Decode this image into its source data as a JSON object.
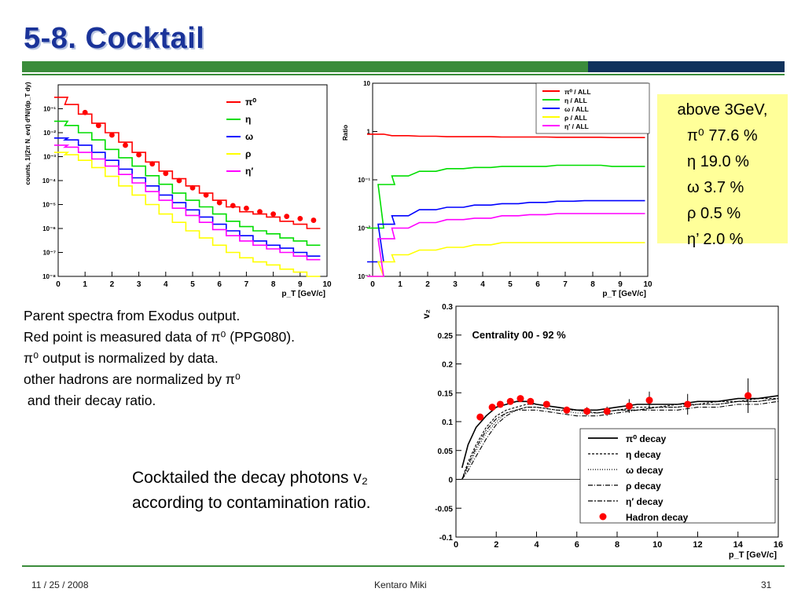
{
  "slide": {
    "title": "5-8. Cocktail",
    "footer_date": "11 / 25 / 2008",
    "footer_author": "Kentaro Miki",
    "page_number": "31"
  },
  "ratio_box": {
    "title": "above 3GeV,",
    "rows": [
      {
        "label": "π⁰",
        "value": "77.6 %"
      },
      {
        "label": "η",
        "value": "19.0 %"
      },
      {
        "label": "ω",
        "value": "3.7 %"
      },
      {
        "label": "ρ",
        "value": "0.5 %"
      },
      {
        "label": "η’",
        "value": "2.0 %"
      }
    ]
  },
  "notes": [
    "Parent spectra from Exodus output.",
    "Red point is measured data of π⁰ (PPG080).",
    "π⁰ output is normalized by data.",
    "other hadrons are normalized by π⁰",
    " and their decay ratio."
  ],
  "caption": [
    "Cocktailed the decay photons v₂",
    "according to contamination ratio."
  ],
  "colors": {
    "pi0": "#ff0000",
    "eta": "#00dd00",
    "omega": "#0000ff",
    "rho": "#ffff00",
    "etap": "#ff00ff",
    "data": "#ff0000",
    "title": "#1a3399"
  },
  "chart_data": [
    {
      "type": "line",
      "ylabel": "counts, 1/(2π N_evt) d²N/(dp_T dy)",
      "xlabel": "p_T [GeV/c]",
      "xlim": [
        0,
        10
      ],
      "ylim": [
        1e-08,
        1
      ],
      "log_y": true,
      "x_ticks": [
        "0",
        "1",
        "2",
        "3",
        "4",
        "5",
        "6",
        "7",
        "8",
        "9",
        "10"
      ],
      "y_ticks": [
        "10⁻⁸",
        "10⁻⁷",
        "10⁻⁶",
        "10⁻⁵",
        "10⁻⁴",
        "10⁻³",
        "10⁻²",
        "10⁻¹"
      ],
      "legend_position": "top-right",
      "series": [
        {
          "name": "π⁰",
          "key": "pi0",
          "x": [
            0.1,
            0.5,
            1,
            1.5,
            2,
            2.5,
            3,
            3.5,
            4,
            4.5,
            5,
            5.5,
            6,
            6.5,
            7,
            7.5,
            8,
            8.5,
            9,
            9.5
          ],
          "y": [
            0.3,
            0.15,
            0.06,
            0.025,
            0.01,
            0.004,
            0.0015,
            0.0006,
            0.00025,
            0.00012,
            6e-05,
            3e-05,
            1.5e-05,
            8e-06,
            5e-06,
            4e-06,
            3e-06,
            2e-06,
            1.5e-06,
            1e-06
          ]
        },
        {
          "name": "η",
          "key": "eta",
          "x": [
            0.1,
            0.5,
            1,
            1.5,
            2,
            2.5,
            3,
            3.5,
            4,
            4.5,
            5,
            5.5,
            6,
            6.5,
            7,
            7.5,
            8,
            8.5,
            9,
            9.5
          ],
          "y": [
            0.03,
            0.02,
            0.01,
            0.005,
            0.002,
            0.0009,
            0.0004,
            0.00016,
            7e-05,
            3e-05,
            1.5e-05,
            8e-06,
            4e-06,
            2e-06,
            1.2e-06,
            8e-07,
            6e-07,
            4e-07,
            3e-07,
            2e-07
          ]
        },
        {
          "name": "ω",
          "key": "omega",
          "x": [
            0.1,
            0.5,
            1,
            1.5,
            2,
            2.5,
            3,
            3.5,
            4,
            4.5,
            5,
            5.5,
            6,
            6.5,
            7,
            7.5,
            8,
            8.5,
            9,
            9.5
          ],
          "y": [
            0.006,
            0.005,
            0.003,
            0.0015,
            0.0007,
            0.0003,
            0.00013,
            6e-05,
            2.5e-05,
            1.2e-05,
            6e-06,
            3e-06,
            1.5e-06,
            8e-07,
            5e-07,
            3e-07,
            2e-07,
            1.5e-07,
            1e-07,
            7e-08
          ]
        },
        {
          "name": "ρ",
          "key": "rho",
          "x": [
            0.1,
            0.5,
            1,
            1.5,
            2,
            2.5,
            3,
            3.5,
            4,
            4.5,
            5,
            5.5,
            6,
            6.5,
            7,
            7.5,
            8,
            8.5,
            9,
            9.5
          ],
          "y": [
            0.0015,
            0.0012,
            0.0007,
            0.00035,
            0.00015,
            6e-05,
            2.5e-05,
            1e-05,
            4e-06,
            1.8e-06,
            8e-07,
            4e-07,
            2e-07,
            1e-07,
            6e-08,
            4e-08,
            3e-08,
            2e-08,
            1.5e-08,
            1e-08
          ]
        },
        {
          "name": "η′",
          "key": "etap",
          "x": [
            0.1,
            0.5,
            1,
            1.5,
            2,
            2.5,
            3,
            3.5,
            4,
            4.5,
            5,
            5.5,
            6,
            6.5,
            7,
            7.5,
            8,
            8.5,
            9,
            9.5
          ],
          "y": [
            0.003,
            0.0025,
            0.0015,
            0.0008,
            0.0004,
            0.00018,
            8e-05,
            3.5e-05,
            1.5e-05,
            7e-06,
            3.5e-06,
            1.8e-06,
            9e-07,
            5e-07,
            3e-07,
            2e-07,
            1.4e-07,
            1e-07,
            7e-08,
            5e-08
          ]
        }
      ],
      "data_points": {
        "key": "data",
        "x": [
          1,
          1.5,
          2,
          2.5,
          3,
          3.5,
          4,
          4.5,
          5,
          5.5,
          6,
          6.5,
          7,
          7.5,
          8,
          8.5,
          9,
          9.5
        ],
        "y": [
          0.07,
          0.02,
          0.008,
          0.003,
          0.0012,
          0.0005,
          0.0002,
          0.0001,
          5e-05,
          2.5e-05,
          1.2e-05,
          9e-06,
          7e-06,
          5e-06,
          4e-06,
          3.2e-06,
          2.6e-06,
          2.2e-06
        ]
      }
    },
    {
      "type": "line",
      "ylabel": "Ratio",
      "xlabel": "p_T [GeV/c]",
      "xlim": [
        0,
        10
      ],
      "ylim": [
        0.001,
        10
      ],
      "log_y": true,
      "x_ticks": [
        "0",
        "1",
        "2",
        "3",
        "4",
        "5",
        "6",
        "7",
        "8",
        "9",
        "10"
      ],
      "y_ticks": [
        "10⁻³",
        "10⁻²",
        "10⁻¹",
        "1",
        "10"
      ],
      "legend_position": "top-right",
      "series": [
        {
          "name": "π⁰ / ALL",
          "key": "pi0",
          "x": [
            0.1,
            1,
            2,
            3,
            4,
            5,
            6,
            7,
            8,
            9,
            9.6
          ],
          "y": [
            0.88,
            0.82,
            0.8,
            0.78,
            0.78,
            0.77,
            0.77,
            0.76,
            0.76,
            0.75,
            0.75
          ]
        },
        {
          "name": "η / ALL",
          "key": "eta",
          "x": [
            0.1,
            0.5,
            1,
            2,
            3,
            4,
            5,
            6,
            7,
            8,
            9,
            9.6
          ],
          "y": [
            0.01,
            0.08,
            0.12,
            0.15,
            0.17,
            0.18,
            0.19,
            0.19,
            0.2,
            0.2,
            0.19,
            0.19
          ]
        },
        {
          "name": "ω / ALL",
          "key": "omega",
          "x": [
            0.1,
            0.5,
            1,
            2,
            3,
            4,
            5,
            6,
            7,
            8,
            9,
            9.6
          ],
          "y": [
            0.002,
            0.012,
            0.018,
            0.024,
            0.027,
            0.03,
            0.032,
            0.034,
            0.036,
            0.037,
            0.037,
            0.037
          ]
        },
        {
          "name": "ρ / ALL",
          "key": "rho",
          "x": [
            0.1,
            0.5,
            1,
            2,
            3,
            4,
            5,
            6,
            7,
            8,
            9,
            9.6
          ],
          "y": [
            0.001,
            0.002,
            0.0028,
            0.0035,
            0.004,
            0.0045,
            0.005,
            0.005,
            0.005,
            0.005,
            0.005,
            0.005
          ]
        },
        {
          "name": "η′ / ALL",
          "key": "etap",
          "x": [
            0.1,
            0.5,
            1,
            2,
            3,
            4,
            5,
            6,
            7,
            8,
            9,
            9.6
          ],
          "y": [
            0.001,
            0.006,
            0.01,
            0.013,
            0.015,
            0.016,
            0.018,
            0.019,
            0.02,
            0.02,
            0.02,
            0.02
          ]
        }
      ]
    },
    {
      "type": "line",
      "title": "Centrality 00 - 92 %",
      "ylabel": "v₂",
      "xlabel": "p_T [GeV/c]",
      "xlim": [
        0,
        16
      ],
      "ylim": [
        -0.1,
        0.3
      ],
      "x_ticks": [
        "0",
        "2",
        "4",
        "6",
        "8",
        "10",
        "12",
        "14",
        "16"
      ],
      "y_ticks": [
        "-0.1",
        "-0.05",
        "0",
        "0.05",
        "0.1",
        "0.15",
        "0.2",
        "0.25",
        "0.3"
      ],
      "legend_position": "bottom-right",
      "series": [
        {
          "name": "π⁰ decay",
          "key": "pi0",
          "x": [
            0.3,
            0.6,
            1,
            1.5,
            2,
            2.5,
            3,
            3.5,
            4,
            5,
            6,
            7,
            8,
            9,
            10,
            11,
            12,
            13,
            14,
            15,
            16
          ],
          "y": [
            0.02,
            0.06,
            0.09,
            0.11,
            0.125,
            0.13,
            0.135,
            0.135,
            0.13,
            0.125,
            0.12,
            0.12,
            0.125,
            0.13,
            0.13,
            0.13,
            0.135,
            0.135,
            0.14,
            0.14,
            0.145
          ]
        },
        {
          "name": "η decay",
          "x": [
            0.3,
            0.6,
            1,
            1.5,
            2,
            2.5,
            3,
            3.5,
            4,
            5,
            6,
            7,
            8,
            9,
            10,
            11,
            12,
            13,
            14,
            15,
            16
          ],
          "y": [
            0.0,
            0.03,
            0.06,
            0.09,
            0.11,
            0.12,
            0.125,
            0.13,
            0.13,
            0.125,
            0.12,
            0.115,
            0.12,
            0.125,
            0.125,
            0.13,
            0.13,
            0.135,
            0.135,
            0.14,
            0.14
          ]
        },
        {
          "name": "ω decay",
          "x": [
            0.3,
            0.6,
            1,
            1.5,
            2,
            2.5,
            3,
            3.5,
            4,
            5,
            6,
            7,
            8,
            9,
            10,
            11,
            12,
            13,
            14,
            15,
            16
          ],
          "y": [
            0.0,
            0.02,
            0.05,
            0.08,
            0.1,
            0.115,
            0.12,
            0.125,
            0.125,
            0.12,
            0.115,
            0.115,
            0.12,
            0.12,
            0.125,
            0.125,
            0.13,
            0.13,
            0.135,
            0.135,
            0.14
          ]
        },
        {
          "name": "ρ decay",
          "x": [
            0.3,
            0.6,
            1,
            1.5,
            2,
            2.5,
            3,
            3.5,
            4,
            5,
            6,
            7,
            8,
            9,
            10,
            11,
            12,
            13,
            14,
            15,
            16
          ],
          "y": [
            0.0,
            0.015,
            0.04,
            0.07,
            0.095,
            0.11,
            0.12,
            0.12,
            0.12,
            0.115,
            0.11,
            0.11,
            0.115,
            0.12,
            0.12,
            0.12,
            0.125,
            0.125,
            0.13,
            0.13,
            0.135
          ]
        },
        {
          "name": "η′ decay",
          "x": [
            0.3,
            0.6,
            1,
            1.5,
            2,
            2.5,
            3,
            3.5,
            4,
            5,
            6,
            7,
            8,
            9,
            10,
            11,
            12,
            13,
            14,
            15,
            16
          ],
          "y": [
            0.0,
            0.025,
            0.055,
            0.085,
            0.105,
            0.115,
            0.12,
            0.125,
            0.125,
            0.12,
            0.12,
            0.115,
            0.12,
            0.12,
            0.125,
            0.125,
            0.13,
            0.13,
            0.135,
            0.135,
            0.14
          ]
        }
      ],
      "data_points": {
        "name": "Hadron decay",
        "key": "data",
        "x": [
          1.2,
          1.8,
          2.2,
          2.7,
          3.2,
          3.7,
          4.5,
          5.5,
          6.5,
          7.5,
          8.6,
          9.6,
          11.5,
          14.5
        ],
        "y": [
          0.108,
          0.125,
          0.13,
          0.135,
          0.14,
          0.135,
          0.13,
          0.12,
          0.118,
          0.118,
          0.127,
          0.137,
          0.13,
          0.145
        ],
        "err": [
          0.004,
          0.004,
          0.004,
          0.004,
          0.004,
          0.005,
          0.005,
          0.006,
          0.007,
          0.008,
          0.012,
          0.015,
          0.018,
          0.03
        ]
      }
    }
  ]
}
